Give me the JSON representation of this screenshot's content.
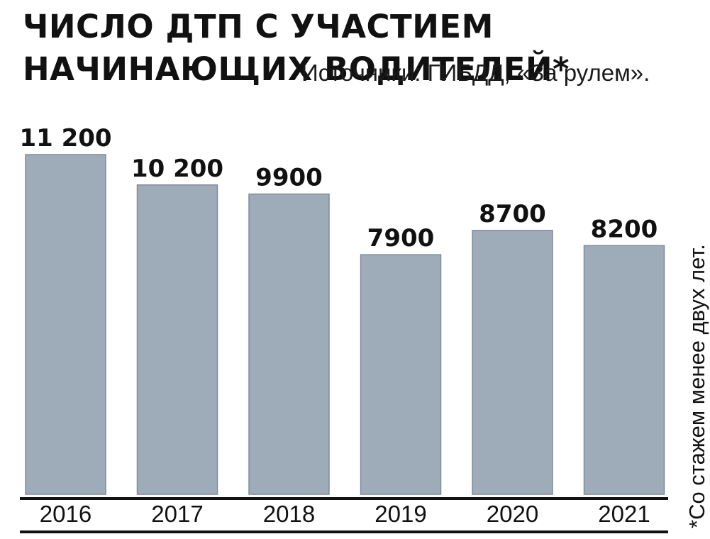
{
  "colors": {
    "bar": "#9eabb8",
    "bar_stroke": "#7f8b98",
    "axis": "#111111",
    "text": "#111111"
  },
  "chart_data": {
    "type": "bar",
    "title": "ЧИСЛО ДТП С УЧАСТИЕМ НАЧИНАЮЩИХ ВОДИТЕЛЕЙ*",
    "subtitle": "Источники: ГИБДД, «За рулем».",
    "xlabel": "",
    "ylabel": "",
    "categories": [
      "2016",
      "2017",
      "2018",
      "2019",
      "2020",
      "2021"
    ],
    "values": [
      11200,
      10200,
      9900,
      7900,
      8700,
      8200
    ],
    "value_labels": [
      "11 200",
      "10 200",
      "9900",
      "7900",
      "8700",
      "8200"
    ],
    "ylim": [
      0,
      11200
    ],
    "grid": false,
    "legend": "none",
    "footnote": "*Со стажем менее двух лет."
  }
}
